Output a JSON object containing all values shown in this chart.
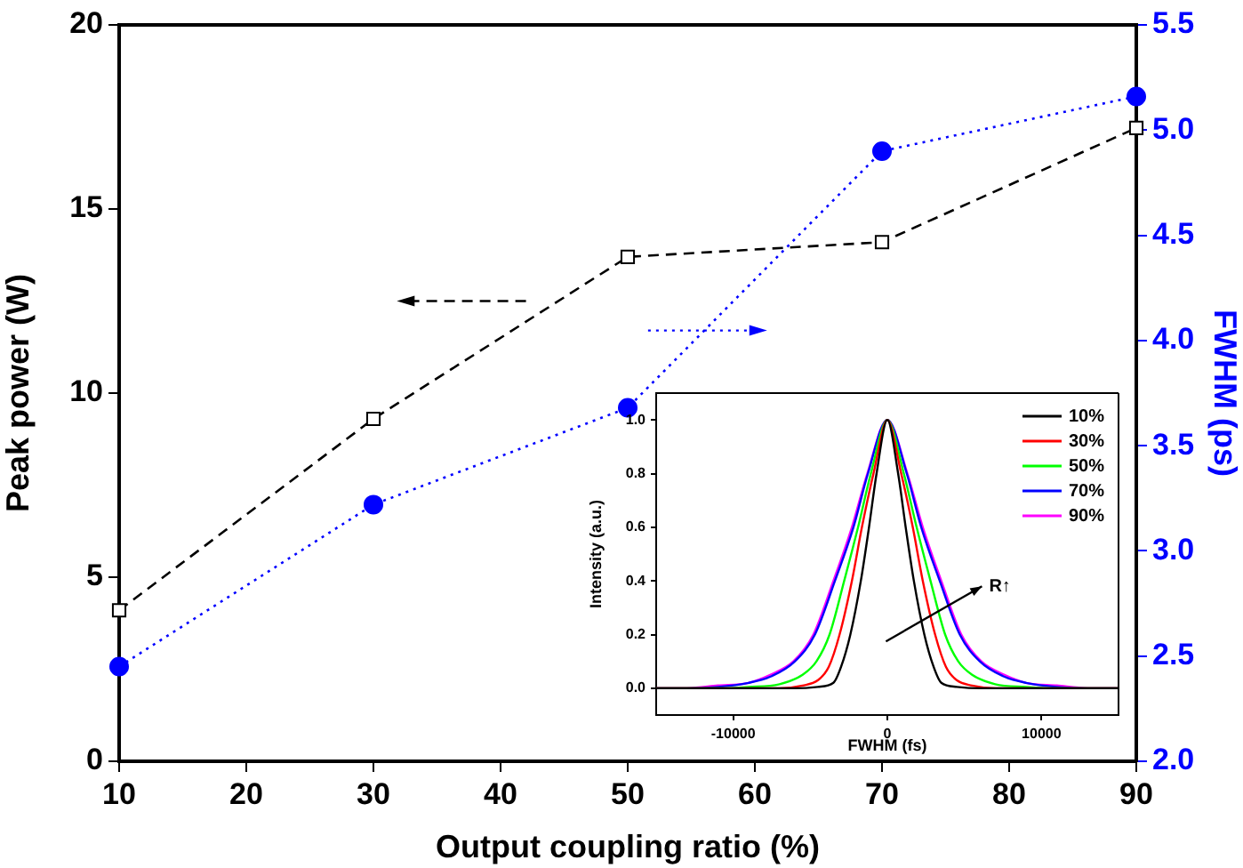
{
  "chart_data": [
    {
      "type": "line",
      "xlabel": "Output coupling ratio (%)",
      "ylabel": "Peak power (W)",
      "y2label": "FWHM (ps)",
      "x": [
        10,
        30,
        50,
        70,
        90
      ],
      "xlim": [
        10,
        90
      ],
      "xticks": [
        10,
        20,
        30,
        40,
        50,
        60,
        70,
        80,
        90
      ],
      "ylim": [
        0,
        20
      ],
      "yticks": [
        0,
        5,
        10,
        15,
        20
      ],
      "y2lim": [
        2.0,
        5.5
      ],
      "y2ticks": [
        {
          "value": 2,
          "label": "2.0"
        },
        2.5,
        {
          "value": 3,
          "label": "3.0"
        },
        3.5,
        {
          "value": 4,
          "label": "4.0"
        },
        4.5,
        {
          "value": 5,
          "label": "5.0"
        },
        5.5
      ],
      "grid": false,
      "legend": false,
      "series": [
        {
          "color": "#000000",
          "values": [
            4.1,
            9.3,
            13.7,
            14.1,
            17.2
          ],
          "marker": "square",
          "line_style": "dashed"
        },
        {
          "color": "#0000ff",
          "values": [
            2.45,
            3.22,
            3.68,
            4.9,
            5.16
          ],
          "axis": "y2",
          "marker": "circle",
          "line_style": "dotted"
        }
      ]
    },
    {
      "type": "line",
      "xlabel": "FWHM (fs)",
      "ylabel": "Intensity (a.u.)",
      "xlim": [
        -15000,
        15000
      ],
      "xticks": [
        -10000,
        0,
        10000
      ],
      "ylim": [
        -0.1,
        1.1
      ],
      "yticks": [
        {
          "value": 0,
          "label": "0.0"
        },
        0.2,
        0.4,
        0.6,
        0.8,
        {
          "value": 1,
          "label": "1.0"
        }
      ],
      "grid": false,
      "legend": "top right",
      "marker": "none",
      "line_style": "solid",
      "annotations": [
        "R↑"
      ],
      "series": [
        {
          "name": "10%",
          "color": "#000000",
          "x": [
            -15000,
            -6000,
            -4500,
            -3500,
            -3000,
            -2400,
            -1720,
            -1190,
            -700,
            0,
            700,
            1190,
            1720,
            2400,
            3000,
            3500,
            4500,
            6000,
            15000
          ],
          "values": [
            0,
            0,
            0.005,
            0.02,
            0.08,
            0.2,
            0.4,
            0.6,
            0.8,
            1,
            0.8,
            0.6,
            0.4,
            0.2,
            0.08,
            0.02,
            0.005,
            0,
            0
          ]
        },
        {
          "name": "30%",
          "color": "#ff0000",
          "x": [
            -15000,
            -7000,
            -5500,
            -4500,
            -3800,
            -3100,
            -2300,
            -1650,
            -900,
            0,
            900,
            1650,
            2300,
            3100,
            3800,
            4500,
            5500,
            7000,
            15000
          ],
          "values": [
            0,
            0,
            0.01,
            0.03,
            0.08,
            0.2,
            0.4,
            0.6,
            0.8,
            1,
            0.8,
            0.6,
            0.4,
            0.2,
            0.08,
            0.03,
            0.01,
            0,
            0
          ]
        },
        {
          "name": "50%",
          "color": "#00ff00",
          "x": [
            -15000,
            -11000,
            -9000,
            -7000,
            -5500,
            -4600,
            -3750,
            -2800,
            -1900,
            -1070,
            0,
            1070,
            1900,
            2800,
            3750,
            4600,
            5500,
            7000,
            9000,
            11000,
            15000
          ],
          "values": [
            0,
            0,
            0.005,
            0.015,
            0.05,
            0.1,
            0.2,
            0.4,
            0.6,
            0.8,
            1,
            0.8,
            0.6,
            0.4,
            0.2,
            0.1,
            0.05,
            0.015,
            0.005,
            0,
            0
          ]
        },
        {
          "name": "70%",
          "color": "#0000ff",
          "x": [
            -15000,
            -13000,
            -11000,
            -9000,
            -7500,
            -6000,
            -4700,
            -3400,
            -2200,
            -1260,
            0,
            1260,
            2200,
            3400,
            4700,
            6000,
            7500,
            9000,
            11000,
            13000,
            15000
          ],
          "values": [
            0,
            0,
            0.005,
            0.02,
            0.045,
            0.1,
            0.2,
            0.4,
            0.6,
            0.8,
            1,
            0.8,
            0.6,
            0.4,
            0.2,
            0.1,
            0.045,
            0.02,
            0.005,
            0,
            0
          ]
        },
        {
          "name": "90%",
          "color": "#ff00ff",
          "x": [
            -15000,
            -13000,
            -11000,
            -9000,
            -7600,
            -6100,
            -4800,
            -3500,
            -2300,
            -1300,
            0,
            1300,
            2300,
            3500,
            4800,
            6100,
            7600,
            9000,
            11000,
            13000,
            15000
          ],
          "values": [
            0,
            0,
            0.01,
            0.02,
            0.05,
            0.1,
            0.2,
            0.4,
            0.6,
            0.8,
            1,
            0.8,
            0.6,
            0.4,
            0.2,
            0.1,
            0.05,
            0.02,
            0.01,
            0,
            0
          ]
        }
      ]
    }
  ]
}
